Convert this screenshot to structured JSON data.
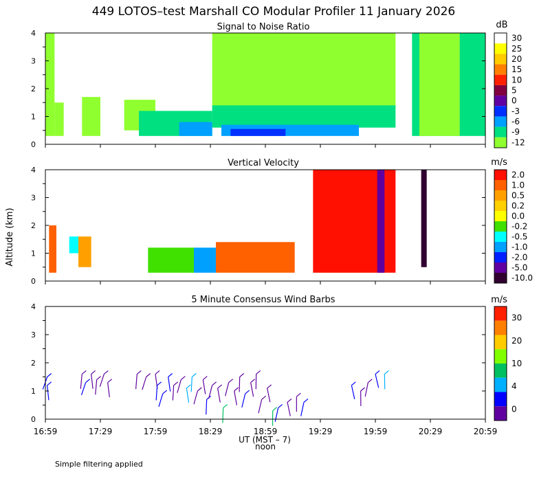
{
  "title": "449 LOTOS–test Marshall CO Modular Profiler 11 January 2026",
  "y_axis_label": "Altitude (km)",
  "x_axis_label": "UT  (MST – 7)",
  "noon_label": "noon",
  "footnote": "Simple filtering applied",
  "x_ticks": [
    "16:59",
    "17:29",
    "17:59",
    "18:29",
    "18:59",
    "19:29",
    "19:59",
    "20:29",
    "20:59"
  ],
  "chart_data": [
    {
      "type": "heatmap",
      "title": "Signal to Noise Ratio",
      "unit": "dB",
      "xlim": [
        "16:59",
        "20:59"
      ],
      "ylim": [
        0,
        4
      ],
      "y_ticks": [
        "0",
        "1",
        "2",
        "3",
        "4"
      ],
      "colorbar": {
        "labels": [
          "30",
          "25",
          "20",
          "15",
          "10",
          "5",
          "0",
          "-3",
          "-6",
          "-9",
          "-12"
        ],
        "colors": [
          "#ffffff",
          "#ffff00",
          "#ffcc00",
          "#ff8000",
          "#ff2000",
          "#800040",
          "#6000a0",
          "#0030ff",
          "#00a0ff",
          "#00e080",
          "#90ff30"
        ]
      },
      "regions": [
        {
          "x": [
            "16:59",
            "17:04"
          ],
          "y": [
            0.3,
            4.0
          ],
          "level": "-12"
        },
        {
          "x": [
            "17:04",
            "17:09"
          ],
          "y": [
            0.3,
            1.5
          ],
          "level": "-12"
        },
        {
          "x": [
            "17:19",
            "17:29"
          ],
          "y": [
            0.3,
            1.7
          ],
          "level": "-12"
        },
        {
          "x": [
            "17:42",
            "17:59"
          ],
          "y": [
            0.5,
            1.6
          ],
          "level": "-12"
        },
        {
          "x": [
            "17:50",
            "18:30"
          ],
          "y": [
            0.3,
            1.2
          ],
          "level": "-9"
        },
        {
          "x": [
            "18:12",
            "18:30"
          ],
          "y": [
            0.3,
            0.8
          ],
          "level": "-6"
        },
        {
          "x": [
            "18:30",
            "20:10"
          ],
          "y": [
            1.3,
            4.0
          ],
          "level": "-12"
        },
        {
          "x": [
            "18:30",
            "20:10"
          ],
          "y": [
            0.6,
            1.4
          ],
          "level": "-9"
        },
        {
          "x": [
            "18:35",
            "19:50"
          ],
          "y": [
            0.3,
            0.7
          ],
          "level": "-6"
        },
        {
          "x": [
            "18:40",
            "19:10"
          ],
          "y": [
            0.3,
            0.55
          ],
          "level": "-3"
        },
        {
          "x": [
            "20:19",
            "20:59"
          ],
          "y": [
            0.3,
            4.0
          ],
          "level": "-9"
        },
        {
          "x": [
            "20:23",
            "20:45"
          ],
          "y": [
            0.3,
            4.0
          ],
          "level": "-12"
        }
      ]
    },
    {
      "type": "heatmap",
      "title": "Vertical Velocity",
      "unit": "m/s",
      "xlim": [
        "16:59",
        "20:59"
      ],
      "ylim": [
        0,
        4
      ],
      "y_ticks": [
        "0",
        "1",
        "2",
        "3",
        "4"
      ],
      "colorbar": {
        "labels": [
          "2.0",
          "1.0",
          "0.5",
          "0.2",
          "0.0",
          "-0.2",
          "-0.5",
          "-1.0",
          "-2.0",
          "-5.0",
          "-10.0"
        ],
        "colors": [
          "#ff1000",
          "#ff6000",
          "#ffa000",
          "#ffd000",
          "#ffff00",
          "#40e000",
          "#00ffff",
          "#00a0ff",
          "#0020ff",
          "#6000a0",
          "#300030"
        ]
      },
      "regions": [
        {
          "x": [
            "17:01",
            "17:05"
          ],
          "y": [
            0.3,
            2.0
          ],
          "level": "1.0"
        },
        {
          "x": [
            "17:12",
            "17:17"
          ],
          "y": [
            1.0,
            1.6
          ],
          "level": "-0.5"
        },
        {
          "x": [
            "17:17",
            "17:24"
          ],
          "y": [
            0.5,
            1.6
          ],
          "level": "0.5"
        },
        {
          "x": [
            "17:55",
            "18:20"
          ],
          "y": [
            0.3,
            1.2
          ],
          "level": "-0.2"
        },
        {
          "x": [
            "18:20",
            "18:32"
          ],
          "y": [
            0.3,
            1.2
          ],
          "level": "-1.0"
        },
        {
          "x": [
            "18:32",
            "19:15"
          ],
          "y": [
            0.3,
            1.4
          ],
          "level": "1.0"
        },
        {
          "x": [
            "19:25",
            "20:10"
          ],
          "y": [
            0.3,
            4.0
          ],
          "level": "2.0"
        },
        {
          "x": [
            "20:00",
            "20:04"
          ],
          "y": [
            0.3,
            4.0
          ],
          "level": "-5.0"
        },
        {
          "x": [
            "20:24",
            "20:27"
          ],
          "y": [
            0.5,
            4.0
          ],
          "level": "-10.0"
        }
      ]
    },
    {
      "type": "scatter",
      "title": "5 Minute Consensus Wind Barbs",
      "unit": "m/s",
      "xlim": [
        "16:59",
        "20:59"
      ],
      "ylim": [
        0,
        4
      ],
      "y_ticks": [
        "0",
        "1",
        "2",
        "3",
        "4"
      ],
      "colorbar": {
        "labels": [
          "30",
          "20",
          "10",
          "4",
          "0"
        ],
        "colors": [
          "#ff2000",
          "#ff8000",
          "#ffcc00",
          "#80ff00",
          "#00c060",
          "#00b0ff",
          "#0000ff",
          "#6000a0"
        ]
      },
      "barbs": [
        {
          "t": "17:00",
          "alt": 1.5,
          "speed": 4
        },
        {
          "t": "17:00",
          "alt": 1.2,
          "speed": 4
        },
        {
          "t": "17:19",
          "alt": 1.6,
          "speed": 2
        },
        {
          "t": "17:21",
          "alt": 1.3,
          "speed": 4
        },
        {
          "t": "17:24",
          "alt": 1.6,
          "speed": 2
        },
        {
          "t": "17:27",
          "alt": 1.4,
          "speed": 2
        },
        {
          "t": "17:31",
          "alt": 1.6,
          "speed": 2
        },
        {
          "t": "17:33",
          "alt": 1.3,
          "speed": 1
        },
        {
          "t": "17:49",
          "alt": 1.6,
          "speed": 2
        },
        {
          "t": "17:54",
          "alt": 1.5,
          "speed": 1
        },
        {
          "t": "17:59",
          "alt": 1.6,
          "speed": 1
        },
        {
          "t": "18:00",
          "alt": 1.2,
          "speed": 4
        },
        {
          "t": "18:03",
          "alt": 0.9,
          "speed": 4
        },
        {
          "t": "18:06",
          "alt": 1.5,
          "speed": 4
        },
        {
          "t": "18:09",
          "alt": 1.2,
          "speed": 2
        },
        {
          "t": "18:13",
          "alt": 1.4,
          "speed": 2
        },
        {
          "t": "18:16",
          "alt": 1.1,
          "speed": 6
        },
        {
          "t": "18:19",
          "alt": 1.5,
          "speed": 6
        },
        {
          "t": "18:22",
          "alt": 1.0,
          "speed": 2
        },
        {
          "t": "18:25",
          "alt": 1.4,
          "speed": 2
        },
        {
          "t": "18:27",
          "alt": 0.7,
          "speed": 4
        },
        {
          "t": "18:30",
          "alt": 1.2,
          "speed": 2
        },
        {
          "t": "18:33",
          "alt": 1.1,
          "speed": 1
        },
        {
          "t": "18:36",
          "alt": 0.4,
          "speed": 8
        },
        {
          "t": "18:39",
          "alt": 1.3,
          "speed": 1
        },
        {
          "t": "18:42",
          "alt": 1.0,
          "speed": 2
        },
        {
          "t": "18:45",
          "alt": 1.5,
          "speed": 1
        },
        {
          "t": "18:48",
          "alt": 0.9,
          "speed": 4
        },
        {
          "t": "18:51",
          "alt": 1.3,
          "speed": 2
        },
        {
          "t": "18:54",
          "alt": 1.6,
          "speed": 1
        },
        {
          "t": "18:57",
          "alt": 0.7,
          "speed": 2
        },
        {
          "t": "19:00",
          "alt": 1.1,
          "speed": 1
        },
        {
          "t": "19:03",
          "alt": 0.3,
          "speed": 8
        },
        {
          "t": "19:06",
          "alt": 0.4,
          "speed": 4
        },
        {
          "t": "19:11",
          "alt": 0.6,
          "speed": 2
        },
        {
          "t": "19:16",
          "alt": 0.8,
          "speed": 1
        },
        {
          "t": "19:20",
          "alt": 0.6,
          "speed": 4
        },
        {
          "t": "19:46",
          "alt": 1.2,
          "speed": 4
        },
        {
          "t": "19:51",
          "alt": 1.0,
          "speed": 2
        },
        {
          "t": "19:55",
          "alt": 1.3,
          "speed": 1
        },
        {
          "t": "19:59",
          "alt": 1.6,
          "speed": 4
        },
        {
          "t": "20:04",
          "alt": 1.6,
          "speed": 6
        }
      ]
    }
  ]
}
